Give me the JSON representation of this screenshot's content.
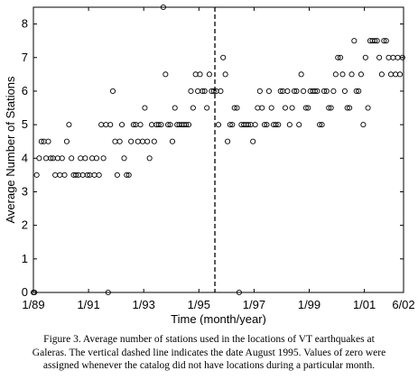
{
  "chart_data": {
    "type": "scatter",
    "xlabel": "Time (month/year)",
    "ylabel": "Average Number of Stations",
    "xlim": [
      1989.0,
      2002.42
    ],
    "ylim": [
      0,
      8.5
    ],
    "x_ticks": [
      {
        "value": 1989.0,
        "label": "1/89"
      },
      {
        "value": 1991.0,
        "label": "1/91"
      },
      {
        "value": 1993.0,
        "label": "1/93"
      },
      {
        "value": 1995.0,
        "label": "1/95"
      },
      {
        "value": 1997.0,
        "label": "1/97"
      },
      {
        "value": 1999.0,
        "label": "1/99"
      },
      {
        "value": 2001.0,
        "label": "1/01"
      },
      {
        "value": 2002.42,
        "label": "6/02"
      }
    ],
    "y_ticks": [
      0,
      1,
      2,
      3,
      4,
      5,
      6,
      7,
      8
    ],
    "vertical_dashed_line_x": 1995.58,
    "marker": "open-circle",
    "x": [
      1989.0,
      1989.04,
      1989.12,
      1989.21,
      1989.29,
      1989.38,
      1989.46,
      1989.54,
      1989.63,
      1989.71,
      1989.79,
      1989.88,
      1989.96,
      1990.04,
      1990.13,
      1990.21,
      1990.29,
      1990.38,
      1990.46,
      1990.54,
      1990.63,
      1990.71,
      1990.79,
      1990.88,
      1990.96,
      1991.04,
      1991.13,
      1991.21,
      1991.29,
      1991.38,
      1991.46,
      1991.54,
      1991.63,
      1991.71,
      1991.79,
      1991.88,
      1991.96,
      1992.04,
      1992.13,
      1992.21,
      1992.29,
      1992.38,
      1992.46,
      1992.54,
      1992.63,
      1992.71,
      1992.79,
      1992.88,
      1992.96,
      1993.04,
      1993.13,
      1993.21,
      1993.29,
      1993.38,
      1993.46,
      1993.54,
      1993.63,
      1993.71,
      1993.79,
      1993.88,
      1993.96,
      1994.04,
      1994.13,
      1994.21,
      1994.29,
      1994.38,
      1994.46,
      1994.54,
      1994.63,
      1994.71,
      1994.79,
      1994.88,
      1994.96,
      1995.04,
      1995.13,
      1995.21,
      1995.29,
      1995.38,
      1995.46,
      1995.54,
      1995.63,
      1995.71,
      1995.79,
      1995.88,
      1995.96,
      1996.04,
      1996.13,
      1996.21,
      1996.29,
      1996.38,
      1996.46,
      1996.54,
      1996.63,
      1996.71,
      1996.79,
      1996.88,
      1996.96,
      1997.04,
      1997.13,
      1997.21,
      1997.29,
      1997.38,
      1997.46,
      1997.54,
      1997.63,
      1997.71,
      1997.79,
      1997.88,
      1997.96,
      1998.04,
      1998.13,
      1998.21,
      1998.29,
      1998.38,
      1998.46,
      1998.54,
      1998.63,
      1998.71,
      1998.79,
      1998.88,
      1998.96,
      1999.04,
      1999.13,
      1999.21,
      1999.29,
      1999.38,
      1999.46,
      1999.54,
      1999.63,
      1999.71,
      1999.79,
      1999.88,
      1999.96,
      2000.04,
      2000.13,
      2000.21,
      2000.29,
      2000.38,
      2000.46,
      2000.54,
      2000.63,
      2000.71,
      2000.79,
      2000.88,
      2000.96,
      2001.04,
      2001.13,
      2001.21,
      2001.29,
      2001.38,
      2001.46,
      2001.54,
      2001.63,
      2001.71,
      2001.79,
      2001.88,
      2001.96,
      2002.04,
      2002.13,
      2002.21,
      2002.29,
      2002.38
    ],
    "y": [
      0.0,
      0.0,
      3.5,
      4.0,
      4.5,
      4.5,
      4.0,
      4.5,
      4.0,
      4.0,
      3.5,
      4.0,
      3.5,
      4.0,
      3.5,
      4.5,
      5.0,
      4.0,
      3.5,
      3.5,
      3.5,
      4.0,
      3.5,
      4.0,
      3.5,
      3.5,
      4.0,
      3.5,
      4.0,
      3.5,
      5.0,
      4.0,
      5.0,
      0.0,
      5.0,
      6.0,
      4.5,
      3.5,
      4.5,
      5.0,
      4.0,
      3.5,
      3.5,
      4.5,
      5.0,
      5.0,
      4.5,
      5.0,
      4.5,
      5.5,
      4.5,
      4.0,
      5.0,
      4.5,
      5.0,
      5.0,
      5.0,
      8.5,
      6.5,
      5.0,
      5.0,
      4.5,
      5.5,
      5.0,
      5.0,
      5.0,
      5.0,
      5.0,
      5.0,
      6.0,
      5.5,
      6.5,
      6.0,
      6.5,
      6.0,
      6.0,
      5.5,
      6.5,
      6.0,
      6.0,
      6.0,
      5.0,
      6.0,
      7.0,
      6.5,
      4.5,
      5.0,
      5.0,
      5.5,
      5.5,
      0.0,
      5.0,
      5.0,
      5.0,
      5.0,
      5.0,
      4.5,
      5.0,
      5.5,
      6.0,
      5.5,
      5.0,
      5.0,
      6.0,
      5.5,
      5.0,
      5.0,
      5.0,
      6.0,
      6.0,
      5.5,
      6.0,
      5.0,
      5.5,
      6.0,
      6.0,
      5.0,
      6.5,
      6.0,
      5.5,
      5.5,
      6.0,
      6.0,
      6.0,
      6.0,
      5.0,
      5.0,
      6.0,
      6.0,
      5.5,
      5.5,
      6.0,
      6.5,
      7.0,
      7.0,
      6.5,
      6.0,
      5.5,
      5.5,
      6.5,
      7.5,
      6.0,
      6.0,
      6.5,
      5.0,
      7.0,
      5.5,
      7.5,
      7.5,
      7.5,
      7.5,
      7.0,
      6.5,
      7.5,
      7.5,
      7.0,
      6.5,
      7.0,
      6.5,
      7.0,
      6.5,
      7.0
    ]
  },
  "caption": {
    "line1": "Figure 3. Average number of stations used in the locations of VT earthquakes at",
    "line2": "Galeras. The vertical dashed line indicates the date August 1995. Values of zero were",
    "line3": "assigned whenever the catalog did not have locations during a particular month."
  }
}
